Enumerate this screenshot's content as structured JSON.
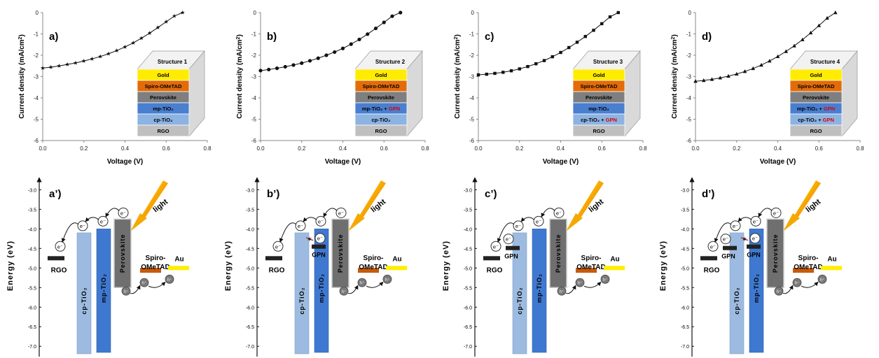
{
  "chart_data": [
    {
      "type": "line",
      "panel_label": "a)",
      "xlabel": "Voltage (V)",
      "ylabel": "Current density (mA/cm",
      "ylabel_sup": "2",
      "ylabel_end": ")",
      "xlim": [
        0,
        0.8
      ],
      "ylim": [
        -6,
        0
      ],
      "xticks": [
        "0.0",
        "0.2",
        "0.4",
        "0.6",
        "0.8"
      ],
      "yticks": [
        "0",
        "-1",
        "-2",
        "-3",
        "-4",
        "-5",
        "-6"
      ],
      "marker": "star",
      "series": [
        {
          "x": [
            0,
            0.04,
            0.08,
            0.12,
            0.16,
            0.2,
            0.24,
            0.28,
            0.32,
            0.36,
            0.4,
            0.44,
            0.48,
            0.52,
            0.56,
            0.6,
            0.64,
            0.68
          ],
          "y": [
            -2.6,
            -2.56,
            -2.5,
            -2.43,
            -2.36,
            -2.27,
            -2.17,
            -2.06,
            -1.93,
            -1.78,
            -1.61,
            -1.42,
            -1.2,
            -0.96,
            -0.7,
            -0.43,
            -0.16,
            0
          ]
        }
      ],
      "structure": {
        "title": "Structure 1",
        "layers": [
          {
            "name": "Gold",
            "suffix": "",
            "color": "#ffec00",
            "text_color": "#000"
          },
          {
            "name": "Spiro-OMeTAD",
            "suffix": "",
            "color": "#e36c09",
            "text_color": "#000"
          },
          {
            "name": "Perovskite",
            "suffix": "",
            "color": "#7f7f7f",
            "text_color": "#000"
          },
          {
            "name": "mp-TiO₂",
            "suffix": "",
            "color": "#4a7fd0",
            "text_color": "#000"
          },
          {
            "name": "cp-TiO₂",
            "suffix": "",
            "color": "#8db3e2",
            "text_color": "#000"
          },
          {
            "name": "RGO",
            "suffix": "",
            "color": "#bfbfbf",
            "text_color": "#000"
          }
        ]
      }
    },
    {
      "type": "line",
      "panel_label": "b)",
      "xlabel": "Voltage (V)",
      "ylabel": "Current density (mA/cm",
      "ylabel_sup": "2",
      "ylabel_end": ")",
      "xlim": [
        0,
        0.8
      ],
      "ylim": [
        -6,
        0
      ],
      "xticks": [
        "0.0",
        "0.2",
        "0.4",
        "0.6",
        "0.8"
      ],
      "yticks": [
        "0",
        "-1",
        "-2",
        "-3",
        "-4",
        "-5",
        "-6"
      ],
      "marker": "circle",
      "series": [
        {
          "x": [
            0,
            0.04,
            0.08,
            0.12,
            0.16,
            0.2,
            0.24,
            0.28,
            0.32,
            0.36,
            0.4,
            0.44,
            0.48,
            0.52,
            0.56,
            0.6,
            0.64,
            0.68
          ],
          "y": [
            -2.72,
            -2.67,
            -2.61,
            -2.54,
            -2.46,
            -2.37,
            -2.26,
            -2.14,
            -2.0,
            -1.85,
            -1.68,
            -1.48,
            -1.26,
            -1.01,
            -0.74,
            -0.46,
            -0.17,
            0
          ]
        }
      ],
      "structure": {
        "title": "Structure 2",
        "layers": [
          {
            "name": "Gold",
            "suffix": "",
            "color": "#ffec00",
            "text_color": "#000"
          },
          {
            "name": "Spiro-OMeTAD",
            "suffix": "",
            "color": "#e36c09",
            "text_color": "#000"
          },
          {
            "name": "Perovskite",
            "suffix": "",
            "color": "#7f7f7f",
            "text_color": "#000"
          },
          {
            "name": "mp-TiO₂ + ",
            "suffix": "GPN",
            "color": "#4a7fd0",
            "text_color": "#000"
          },
          {
            "name": "cp-TiO₂",
            "suffix": "",
            "color": "#8db3e2",
            "text_color": "#000"
          },
          {
            "name": "RGO",
            "suffix": "",
            "color": "#bfbfbf",
            "text_color": "#000"
          }
        ]
      }
    },
    {
      "type": "line",
      "panel_label": "c)",
      "xlabel": "Voltage (V)",
      "ylabel": "Current density (mA/cm",
      "ylabel_sup": "2",
      "ylabel_end": ")",
      "xlim": [
        0,
        0.8
      ],
      "ylim": [
        -6,
        0
      ],
      "xticks": [
        "0.0",
        "0.2",
        "0.4",
        "0.6",
        "0.8"
      ],
      "yticks": [
        "0",
        "-1",
        "-2",
        "-3",
        "-4",
        "-5",
        "-6"
      ],
      "marker": "square",
      "series": [
        {
          "x": [
            0,
            0.04,
            0.08,
            0.12,
            0.16,
            0.2,
            0.24,
            0.28,
            0.32,
            0.36,
            0.4,
            0.44,
            0.48,
            0.52,
            0.56,
            0.6,
            0.64,
            0.68
          ],
          "y": [
            -2.92,
            -2.89,
            -2.85,
            -2.8,
            -2.73,
            -2.64,
            -2.53,
            -2.4,
            -2.25,
            -2.07,
            -1.87,
            -1.64,
            -1.39,
            -1.12,
            -0.83,
            -0.52,
            -0.2,
            0
          ]
        }
      ],
      "structure": {
        "title": "Structure 3",
        "layers": [
          {
            "name": "Gold",
            "suffix": "",
            "color": "#ffec00",
            "text_color": "#000"
          },
          {
            "name": "Spiro-OMeTAD",
            "suffix": "",
            "color": "#e36c09",
            "text_color": "#000"
          },
          {
            "name": "Perovskite",
            "suffix": "",
            "color": "#7f7f7f",
            "text_color": "#000"
          },
          {
            "name": "mp-TiO₂",
            "suffix": "",
            "color": "#4a7fd0",
            "text_color": "#000"
          },
          {
            "name": "cp-TiO₂ + ",
            "suffix": "GPN",
            "color": "#8db3e2",
            "text_color": "#000"
          },
          {
            "name": "RGO",
            "suffix": "",
            "color": "#bfbfbf",
            "text_color": "#000"
          }
        ]
      }
    },
    {
      "type": "line",
      "panel_label": "d)",
      "xlabel": "Voltage (V)",
      "ylabel": "Current density (mA/cm",
      "ylabel_sup": "2",
      "ylabel_end": ")",
      "xlim": [
        0,
        0.8
      ],
      "ylim": [
        -6,
        0
      ],
      "xticks": [
        "0.0",
        "0.2",
        "0.4",
        "0.6",
        "0.8"
      ],
      "yticks": [
        "0",
        "-1",
        "-2",
        "-3",
        "-4",
        "-5",
        "-6"
      ],
      "marker": "triangle",
      "series": [
        {
          "x": [
            0,
            0.04,
            0.08,
            0.12,
            0.16,
            0.2,
            0.24,
            0.28,
            0.32,
            0.36,
            0.4,
            0.44,
            0.48,
            0.52,
            0.56,
            0.6,
            0.64,
            0.68
          ],
          "y": [
            -3.22,
            -3.18,
            -3.13,
            -3.06,
            -2.98,
            -2.88,
            -2.76,
            -2.62,
            -2.46,
            -2.27,
            -2.06,
            -1.82,
            -1.56,
            -1.27,
            -0.95,
            -0.61,
            -0.26,
            0
          ]
        }
      ],
      "structure": {
        "title": "Structure 4",
        "layers": [
          {
            "name": "Gold",
            "suffix": "",
            "color": "#ffec00",
            "text_color": "#000"
          },
          {
            "name": "Spiro-OMeTAD",
            "suffix": "",
            "color": "#e36c09",
            "text_color": "#000"
          },
          {
            "name": "Perovskite",
            "suffix": "",
            "color": "#7f7f7f",
            "text_color": "#000"
          },
          {
            "name": "mp-TiO₂ + ",
            "suffix": "GPN",
            "color": "#4a7fd0",
            "text_color": "#000"
          },
          {
            "name": "cp-TiO₂ + ",
            "suffix": "GPN",
            "color": "#8db3e2",
            "text_color": "#000"
          },
          {
            "name": "RGO",
            "suffix": "",
            "color": "#bfbfbf",
            "text_color": "#000"
          }
        ]
      }
    }
  ],
  "energy_diagrams": {
    "ylabel": "Energy (eV)",
    "ylim": [
      -7.3,
      -2.6
    ],
    "yticks": [
      -3.0,
      -3.5,
      -4.0,
      -4.5,
      -5.0,
      -5.5,
      -6.0,
      -6.5,
      -7.0
    ],
    "ytick_labels": [
      "-3.0",
      "-3.5",
      "-4.0",
      "-4.5",
      "-5.0",
      "-5.5",
      "-6.0",
      "-6.5",
      "-7.0"
    ],
    "labels": {
      "rgo": "RGO",
      "cp": "cp-TiO₂",
      "mp": "mp-TiO₂",
      "perovskite": "Perovskite",
      "spiro_1": "Spiro-",
      "spiro_2": "OMeTAD",
      "au": "Au",
      "gpn": "GPN",
      "light": "light",
      "electron": "e⁻",
      "hole": "h⁺"
    },
    "levels": {
      "rgo": -4.75,
      "cp_top": -4.1,
      "mp_top": -4.0,
      "perovskite_top": -3.75,
      "perovskite_bottom": -5.5,
      "spiro": -5.05,
      "au": -5.0,
      "gpn": -4.4
    },
    "colors": {
      "cp": "#9dbbe0",
      "mp": "#3f78d0",
      "perovskite": "#6f6f6f",
      "spiro": "#c85a0a",
      "au": "#ffee00",
      "rgo": "#222222",
      "gpn": "#222222",
      "light": "#f5a800",
      "block": "#d62020"
    },
    "panels": [
      {
        "label": "a’)",
        "gpn_on_cp": false,
        "gpn_on_mp": false
      },
      {
        "label": "b’)",
        "gpn_on_cp": false,
        "gpn_on_mp": true
      },
      {
        "label": "c’)",
        "gpn_on_cp": true,
        "gpn_on_mp": false
      },
      {
        "label": "d’)",
        "gpn_on_cp": true,
        "gpn_on_mp": true
      }
    ]
  }
}
